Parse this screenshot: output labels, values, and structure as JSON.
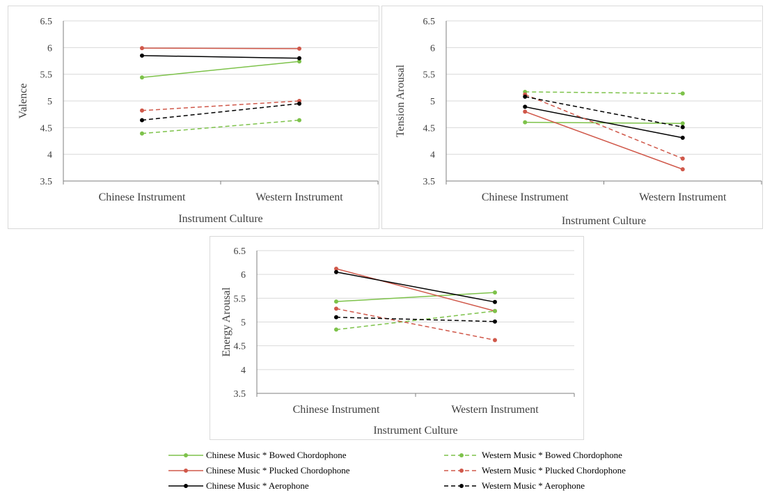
{
  "chart_data": [
    {
      "type": "line",
      "ylabel": "Valence",
      "xlabel": "Instrument Culture",
      "categories": [
        "Chinese Instrument",
        "Western Instrument"
      ],
      "ylim": [
        3.5,
        6.5
      ],
      "yticks": [
        "3.5",
        "4",
        "4.5",
        "5",
        "5.5",
        "6",
        "6.5"
      ],
      "grid": true,
      "series": [
        {
          "name": "Chinese Music * Bowed Chordophone",
          "values": [
            5.44,
            5.74
          ]
        },
        {
          "name": "Chinese  Music * Plucked Chordophone",
          "values": [
            5.99,
            5.98
          ]
        },
        {
          "name": "Chinese  Music *  Aerophone",
          "values": [
            5.85,
            5.8
          ]
        },
        {
          "name": "Western Music * Bowed Chordophone",
          "values": [
            4.39,
            4.64
          ]
        },
        {
          "name": "Western  Music * Plucked Chordophone",
          "values": [
            4.82,
            5.0
          ]
        },
        {
          "name": "Western  Music *  Aerophone",
          "values": [
            4.64,
            4.95
          ]
        }
      ]
    },
    {
      "type": "line",
      "ylabel": "Tension Arousal",
      "xlabel": "Instrument Culture",
      "categories": [
        "Chinese Instrument",
        "Western Instrument"
      ],
      "ylim": [
        3.5,
        6.5
      ],
      "yticks": [
        "3.5",
        "4",
        "4.5",
        "5",
        "5.5",
        "6",
        "6.5"
      ],
      "grid": true,
      "series": [
        {
          "name": "Chinese Music * Bowed Chordophone",
          "values": [
            4.6,
            4.58
          ]
        },
        {
          "name": "Chinese  Music * Plucked Chordophone",
          "values": [
            4.8,
            3.72
          ]
        },
        {
          "name": "Chinese  Music *  Aerophone",
          "values": [
            4.89,
            4.31
          ]
        },
        {
          "name": "Western Music * Bowed Chordophone",
          "values": [
            5.17,
            5.14
          ]
        },
        {
          "name": "Western  Music * Plucked Chordophone",
          "values": [
            5.12,
            3.92
          ]
        },
        {
          "name": "Western  Music *  Aerophone",
          "values": [
            5.08,
            4.51
          ]
        }
      ]
    },
    {
      "type": "line",
      "ylabel": "Energy Arousal",
      "xlabel": "Instrument Culture",
      "categories": [
        "Chinese Instrument",
        "Western Instrument"
      ],
      "ylim": [
        3.5,
        6.5
      ],
      "yticks": [
        "3.5",
        "4",
        "4.5",
        "5",
        "5.5",
        "6",
        "6.5"
      ],
      "grid": true,
      "series": [
        {
          "name": "Chinese Music * Bowed Chordophone",
          "values": [
            5.43,
            5.62
          ]
        },
        {
          "name": "Chinese  Music * Plucked Chordophone",
          "values": [
            6.12,
            5.23
          ]
        },
        {
          "name": "Chinese  Music *  Aerophone",
          "values": [
            6.05,
            5.42
          ]
        },
        {
          "name": "Western Music * Bowed Chordophone",
          "values": [
            4.84,
            5.23
          ]
        },
        {
          "name": "Western  Music * Plucked Chordophone",
          "values": [
            5.28,
            4.62
          ]
        },
        {
          "name": "Western  Music *  Aerophone",
          "values": [
            5.1,
            5.01
          ]
        }
      ]
    }
  ],
  "series_styles": [
    {
      "color": "#7dc24a",
      "dash": "solid"
    },
    {
      "color": "#d0584a",
      "dash": "solid"
    },
    {
      "color": "#000000",
      "dash": "solid"
    },
    {
      "color": "#7dc24a",
      "dash": "dashed"
    },
    {
      "color": "#d0584a",
      "dash": "dashed"
    },
    {
      "color": "#000000",
      "dash": "dashed"
    }
  ],
  "legend": {
    "placement": "bottom",
    "items": [
      "Chinese Music * Bowed Chordophone",
      "Chinese  Music * Plucked Chordophone",
      "Chinese  Music *  Aerophone",
      "Western Music * Bowed Chordophone",
      "Western  Music * Plucked Chordophone",
      "Western  Music *  Aerophone"
    ]
  }
}
